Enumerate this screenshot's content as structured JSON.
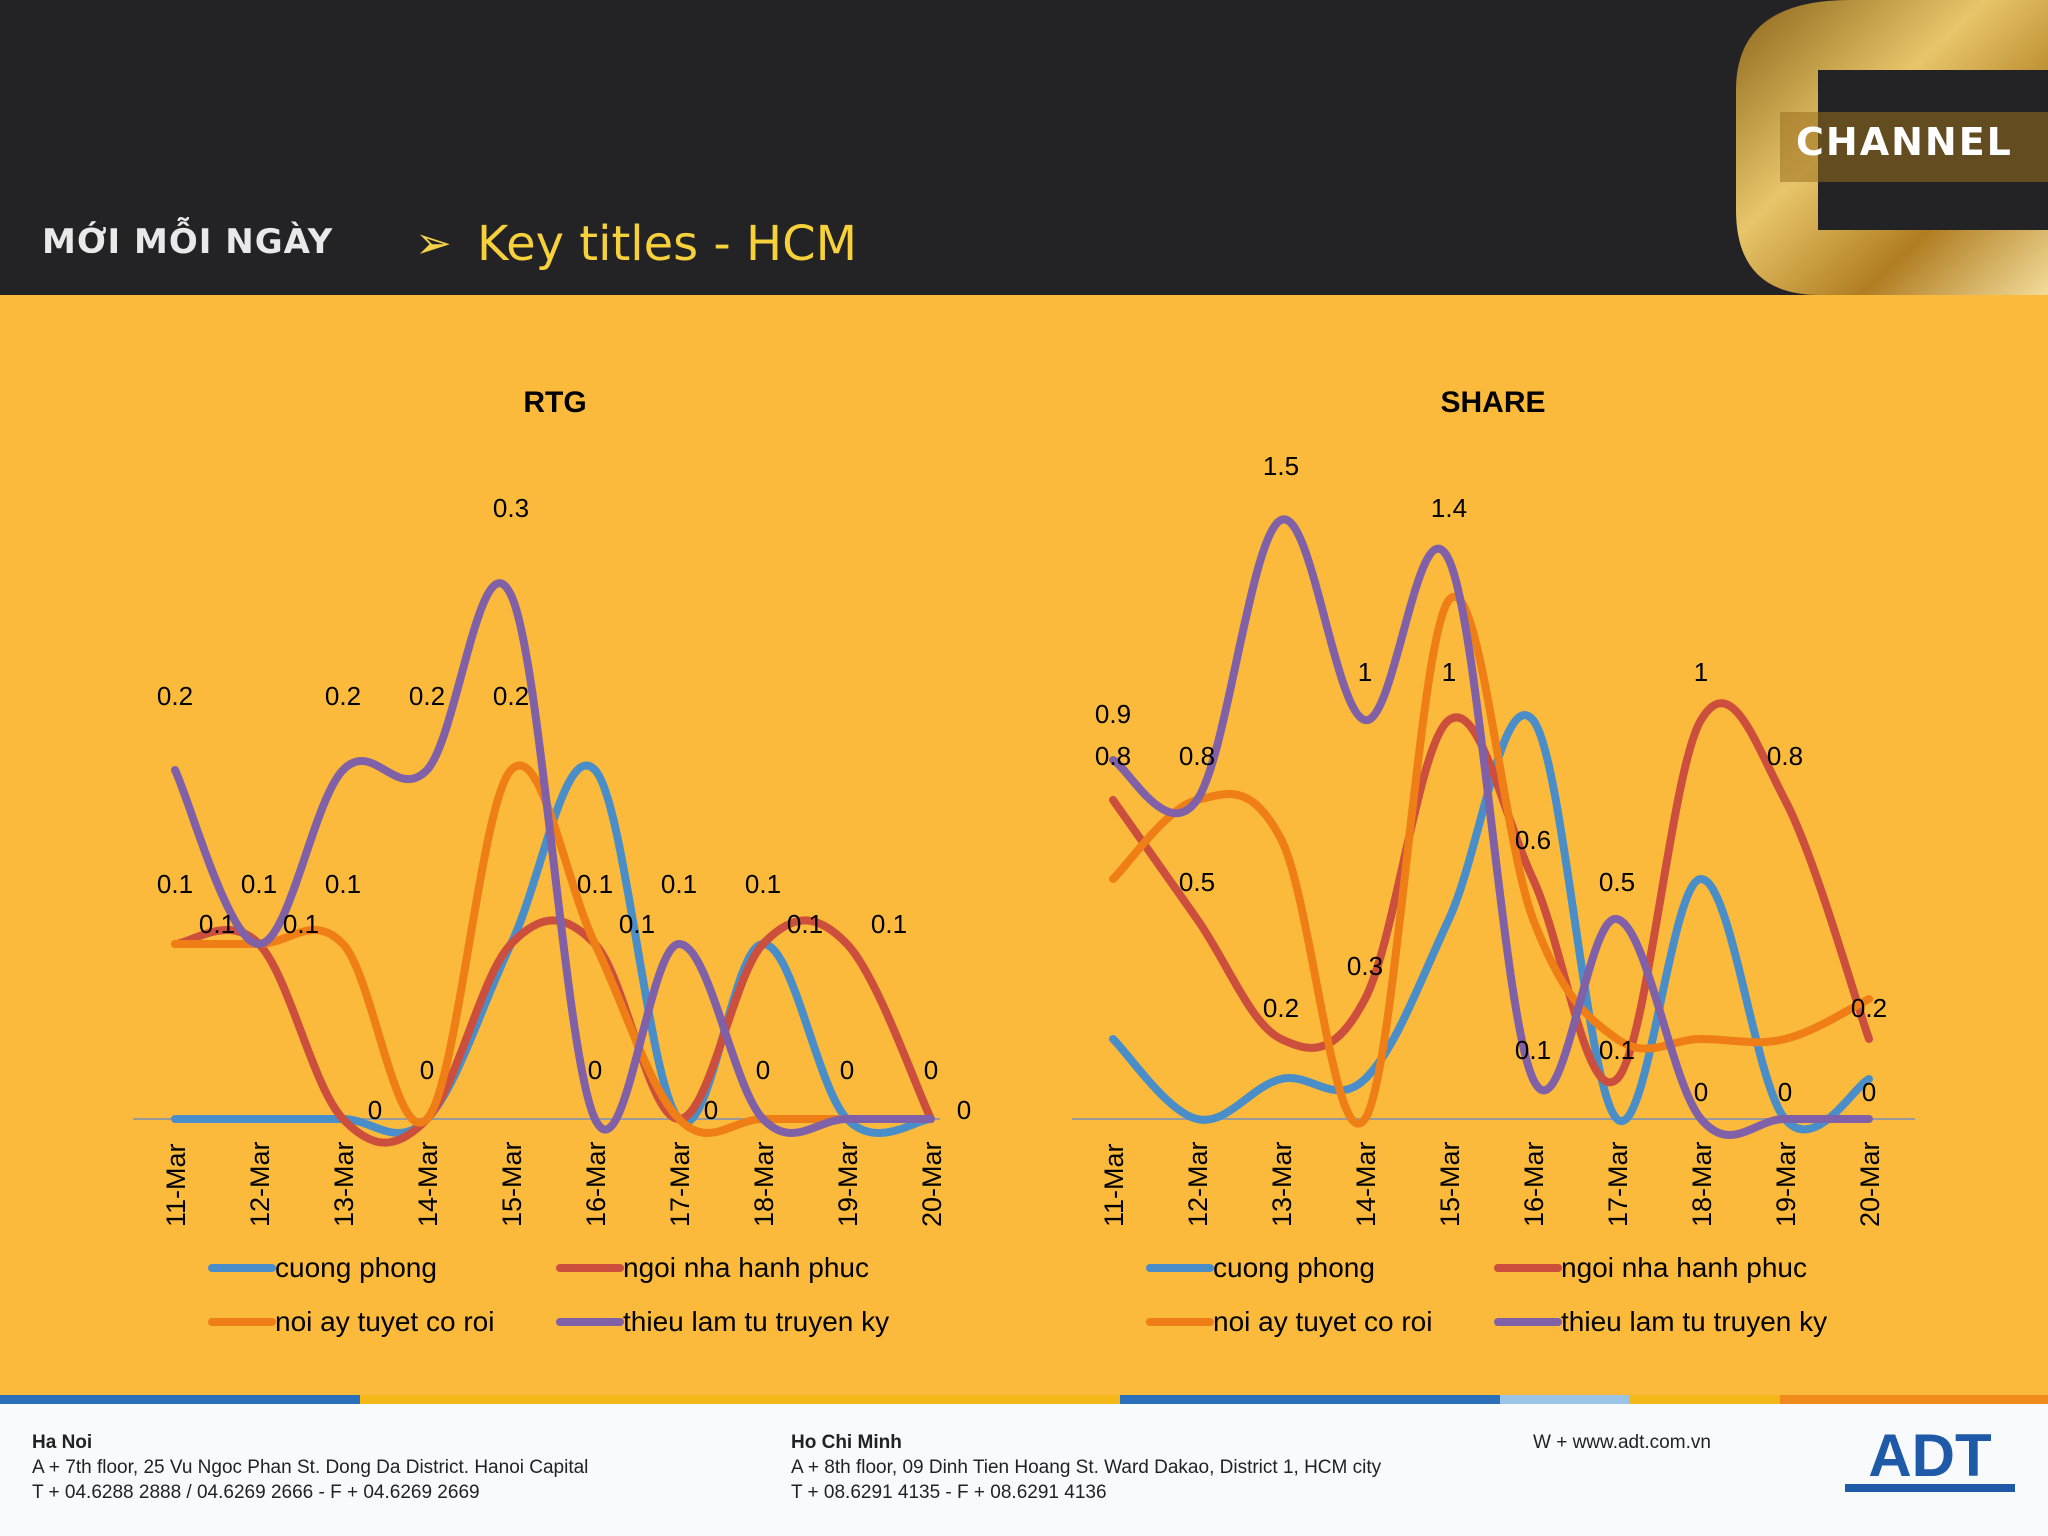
{
  "header": {
    "brand": "MỚI MỖI NGÀY",
    "bullet": "➢",
    "title": "Key titles - HCM",
    "channel_logo_text": "CHANNEL"
  },
  "colors": {
    "background": "#fbba3b",
    "header_bg": "#232325",
    "title": "#f7d13a",
    "cuong_phong": "#4a8ec9",
    "ngoi_nha_hanh_phuc": "#cc4e3c",
    "noi_ay_tuyet_co_roi": "#ee7e15",
    "thieu_lam_tu_truyen_ky": "#8060a6"
  },
  "chart_data": [
    {
      "type": "line",
      "title": "RTG",
      "categories": [
        "11-Mar",
        "12-Mar",
        "13-Mar",
        "14-Mar",
        "15-Mar",
        "16-Mar",
        "17-Mar",
        "18-Mar",
        "19-Mar",
        "20-Mar"
      ],
      "series": [
        {
          "name": "cuong phong",
          "values": [
            0,
            0,
            0,
            0,
            0.1,
            0.2,
            0,
            0.1,
            0,
            0
          ]
        },
        {
          "name": "ngoi nha hanh phuc",
          "values": [
            0.1,
            0.1,
            0,
            0,
            0.1,
            0.1,
            0,
            0.1,
            0.1,
            0
          ]
        },
        {
          "name": "noi ay tuyet co roi",
          "values": [
            0.1,
            0.1,
            0.1,
            0,
            0.2,
            0.1,
            0,
            0,
            0,
            0
          ]
        },
        {
          "name": "thieu lam tu truyen ky",
          "values": [
            0.2,
            0.1,
            0.2,
            0.2,
            0.3,
            0,
            0.1,
            0,
            0,
            0
          ]
        }
      ],
      "data_labels": [
        "0.2",
        "0.3",
        "0.2",
        "0.2",
        "0.2",
        "0.1",
        "0.1",
        "0.1",
        "0.1",
        "0.1",
        "0.1",
        "0.1",
        "0.1",
        "0.1",
        "0.1",
        "0.1",
        "0",
        "0",
        "0",
        "0",
        "0",
        "0",
        "0",
        "0"
      ],
      "ylim": [
        -0.01,
        0.33
      ],
      "smooth": true,
      "legend": "bottom",
      "grid": false
    },
    {
      "type": "line",
      "title": "SHARE",
      "categories": [
        "11-Mar",
        "12-Mar",
        "13-Mar",
        "14-Mar",
        "15-Mar",
        "16-Mar",
        "17-Mar",
        "18-Mar",
        "19-Mar",
        "20-Mar"
      ],
      "series": [
        {
          "name": "cuong phong",
          "values": [
            0.2,
            0,
            0.1,
            0.1,
            0.5,
            1,
            0,
            0.6,
            0,
            0.1
          ]
        },
        {
          "name": "ngoi nha hanh phuc",
          "values": [
            0.8,
            0.5,
            0.2,
            0.3,
            1,
            0.6,
            0.1,
            1,
            0.8,
            0.2
          ]
        },
        {
          "name": "noi ay tuyet co roi",
          "values": [
            0.6,
            0.8,
            0.7,
            0,
            1.3,
            0.5,
            0.2,
            0.2,
            0.2,
            0.3
          ]
        },
        {
          "name": "thieu lam tu truyen ky",
          "values": [
            0.9,
            0.8,
            1.5,
            1,
            1.4,
            0.1,
            0.5,
            0,
            0,
            0
          ]
        }
      ],
      "data_labels": [
        "1.5",
        "1.4",
        "1",
        "1",
        "1",
        "0.9",
        "0.8",
        "0.8",
        "0.8",
        "0.5",
        "0.6",
        "0.5",
        "0.3",
        "0.2",
        "0.2",
        "0.1",
        "0.1",
        "0",
        "0",
        "0"
      ],
      "ylim": [
        -0.03,
        1.55
      ],
      "smooth": true,
      "legend": "bottom",
      "grid": false
    }
  ],
  "footer": {
    "hanoi": {
      "title": "Ha Noi",
      "line1": "A + 7th floor, 25 Vu Ngoc Phan St. Dong Da District. Hanoi Capital",
      "line2": "T + 04.6288 2888 / 04.6269 2666 - F + 04.6269 2669"
    },
    "hcm": {
      "title": "Ho Chi Minh",
      "line1": "A + 8th floor, 09 Dinh Tien Hoang St. Ward Dakao, District 1, HCM city",
      "line2": "T + 08.6291 4135 - F + 08.6291 4136"
    },
    "web": "W + www.adt.com.vn",
    "logo_text": "ADT",
    "stripe_colors": [
      "#2a6fb7",
      "#f5b819",
      "#2a6fb7",
      "#9bc3e6",
      "#f5b819",
      "#f08a1c"
    ]
  }
}
